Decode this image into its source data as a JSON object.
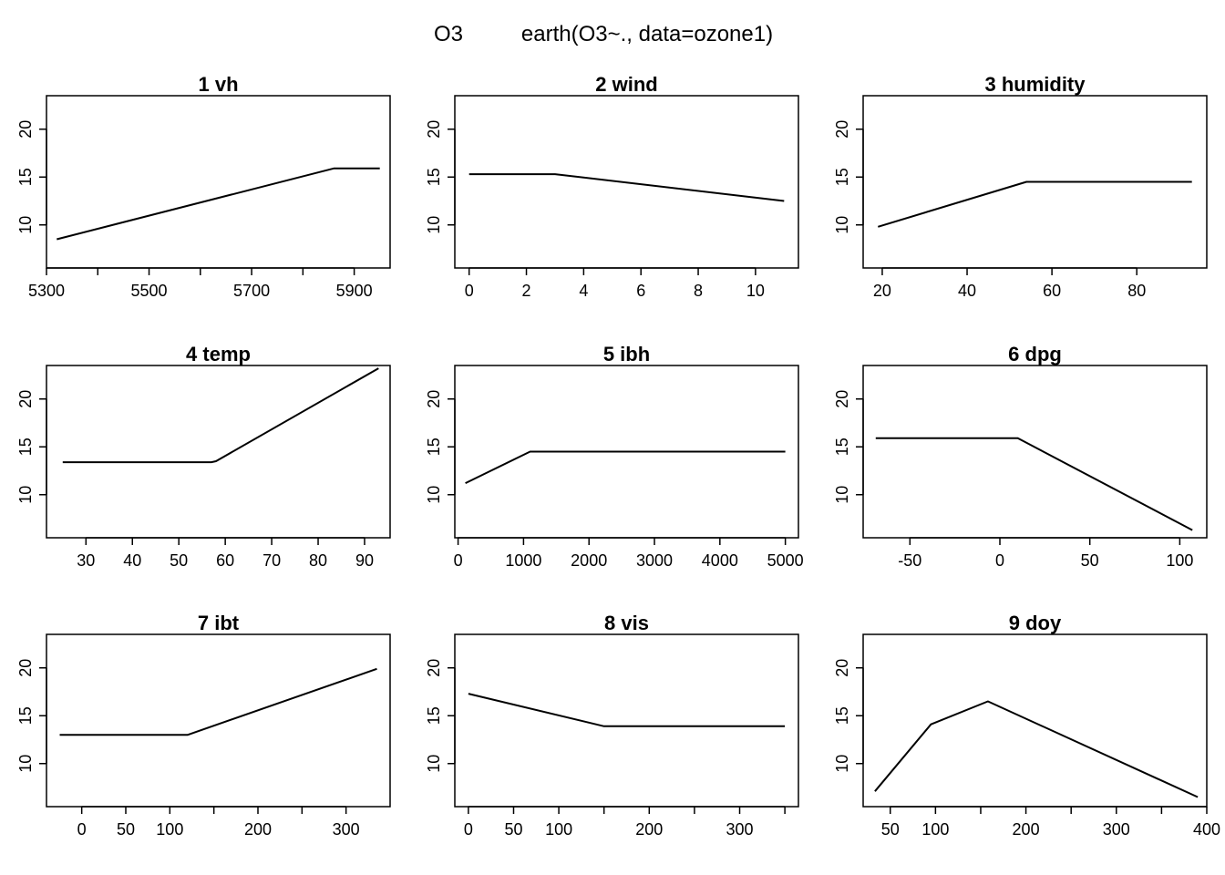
{
  "figure": {
    "title_left": "O3",
    "title_right": "earth(O3~., data=ozone1)"
  },
  "chart_data": [
    {
      "type": "line",
      "title": "1  vh",
      "xlabel": "",
      "ylabel": "",
      "ylim": [
        5.5,
        23.5
      ],
      "xlim": [
        5300,
        5970
      ],
      "xticks": [
        5300,
        5400,
        5500,
        5600,
        5700,
        5800,
        5900
      ],
      "xtick_labels": [
        "5300",
        "",
        "5500",
        "",
        "5700",
        "",
        "5900"
      ],
      "yticks": [
        10,
        15,
        20
      ],
      "ytick_labels": [
        "10",
        "15",
        "20"
      ],
      "x": [
        5320,
        5860,
        5950
      ],
      "y": [
        8.5,
        15.9,
        15.9
      ]
    },
    {
      "type": "line",
      "title": "2  wind",
      "xlabel": "",
      "ylabel": "",
      "ylim": [
        5.5,
        23.5
      ],
      "xlim": [
        -0.5,
        11.5
      ],
      "xticks": [
        0,
        2,
        4,
        6,
        8,
        10
      ],
      "xtick_labels": [
        "0",
        "2",
        "4",
        "6",
        "8",
        "10"
      ],
      "yticks": [
        10,
        15,
        20
      ],
      "ytick_labels": [
        "10",
        "15",
        "20"
      ],
      "x": [
        0,
        3,
        11
      ],
      "y": [
        15.3,
        15.3,
        12.5
      ]
    },
    {
      "type": "line",
      "title": "3  humidity",
      "xlabel": "",
      "ylabel": "",
      "ylim": [
        5.5,
        23.5
      ],
      "xlim": [
        15.5,
        96.5
      ],
      "xticks": [
        20,
        40,
        60,
        80
      ],
      "xtick_labels": [
        "20",
        "40",
        "60",
        "80"
      ],
      "yticks": [
        10,
        15,
        20
      ],
      "ytick_labels": [
        "10",
        "15",
        "20"
      ],
      "x": [
        19,
        54,
        93
      ],
      "y": [
        9.8,
        14.5,
        14.5
      ]
    },
    {
      "type": "line",
      "title": "4  temp",
      "xlabel": "",
      "ylabel": "",
      "ylim": [
        5.5,
        23.5
      ],
      "xlim": [
        21.5,
        95.5
      ],
      "xticks": [
        30,
        40,
        50,
        60,
        70,
        80,
        90
      ],
      "xtick_labels": [
        "30",
        "40",
        "50",
        "60",
        "70",
        "80",
        "90"
      ],
      "yticks": [
        10,
        15,
        20
      ],
      "ytick_labels": [
        "10",
        "15",
        "20"
      ],
      "x": [
        25,
        57,
        58,
        93
      ],
      "y": [
        13.4,
        13.4,
        13.5,
        23.2
      ]
    },
    {
      "type": "line",
      "title": "5  ibh",
      "xlabel": "",
      "ylabel": "",
      "ylim": [
        5.5,
        23.5
      ],
      "xlim": [
        -50,
        5200
      ],
      "xticks": [
        0,
        1000,
        2000,
        3000,
        4000,
        5000
      ],
      "xtick_labels": [
        "0",
        "1000",
        "2000",
        "3000",
        "4000",
        "5000"
      ],
      "yticks": [
        10,
        15,
        20
      ],
      "ytick_labels": [
        "10",
        "15",
        "20"
      ],
      "x": [
        111,
        1100,
        5000
      ],
      "y": [
        11.2,
        14.5,
        14.5
      ]
    },
    {
      "type": "line",
      "title": "6  dpg",
      "xlabel": "",
      "ylabel": "",
      "ylim": [
        5.5,
        23.5
      ],
      "xlim": [
        -76,
        115
      ],
      "xticks": [
        -50,
        0,
        50,
        100
      ],
      "xtick_labels": [
        "-50",
        "0",
        "50",
        "100"
      ],
      "yticks": [
        10,
        15,
        20
      ],
      "ytick_labels": [
        "10",
        "15",
        "20"
      ],
      "x": [
        -69,
        10,
        107
      ],
      "y": [
        15.9,
        15.9,
        6.3
      ]
    },
    {
      "type": "line",
      "title": "7  ibt",
      "xlabel": "",
      "ylabel": "",
      "ylim": [
        5.5,
        23.5
      ],
      "xlim": [
        -40,
        350
      ],
      "xticks": [
        0,
        50,
        100,
        150,
        200,
        250,
        300
      ],
      "xtick_labels": [
        "0",
        "50",
        "100",
        "",
        "200",
        "",
        "300"
      ],
      "yticks": [
        10,
        15,
        20
      ],
      "ytick_labels": [
        "10",
        "15",
        "20"
      ],
      "x": [
        -25,
        120,
        335
      ],
      "y": [
        13.0,
        13.0,
        19.9
      ]
    },
    {
      "type": "line",
      "title": "8  vis",
      "xlabel": "",
      "ylabel": "",
      "ylim": [
        5.5,
        23.5
      ],
      "xlim": [
        -15,
        365
      ],
      "xticks": [
        0,
        50,
        100,
        150,
        200,
        250,
        300,
        350
      ],
      "xtick_labels": [
        "0",
        "50",
        "100",
        "",
        "200",
        "",
        "300",
        ""
      ],
      "yticks": [
        10,
        15,
        20
      ],
      "ytick_labels": [
        "10",
        "15",
        "20"
      ],
      "x": [
        0,
        150,
        350
      ],
      "y": [
        17.3,
        13.9,
        13.9
      ]
    },
    {
      "type": "line",
      "title": "9  doy",
      "xlabel": "",
      "ylabel": "",
      "ylim": [
        5.5,
        23.5
      ],
      "xlim": [
        20,
        400
      ],
      "xticks": [
        50,
        100,
        150,
        200,
        250,
        300,
        350,
        400
      ],
      "xtick_labels": [
        "50",
        "100",
        "",
        "200",
        "",
        "300",
        "",
        "400"
      ],
      "yticks": [
        10,
        15,
        20
      ],
      "ytick_labels": [
        "10",
        "15",
        "20"
      ],
      "x": [
        33,
        95,
        158,
        390
      ],
      "y": [
        7.1,
        14.1,
        16.5,
        6.5
      ]
    }
  ]
}
